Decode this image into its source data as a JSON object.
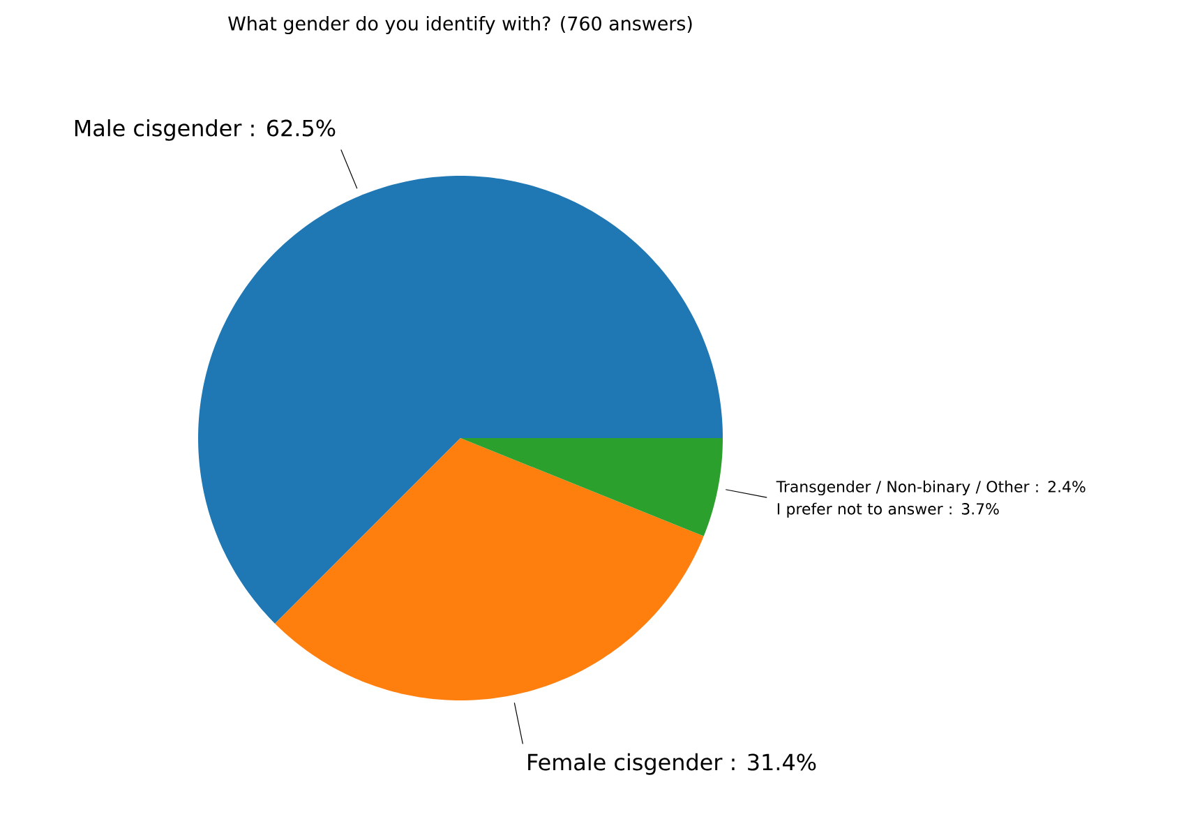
{
  "chart_data": {
    "type": "pie",
    "title": "What gender do you identify with? (760 answers)",
    "categories": [
      "Male cisgender : 62.5%",
      "Female cisgender : 31.4%",
      "Transgender / Non-binary / Other : 2.4%\nI prefer not to answer : 3.7%"
    ],
    "values": [
      62.5,
      31.4,
      6.1
    ],
    "colors": [
      "#1f77b4",
      "#ff7f0e",
      "#2ca02c"
    ]
  }
}
